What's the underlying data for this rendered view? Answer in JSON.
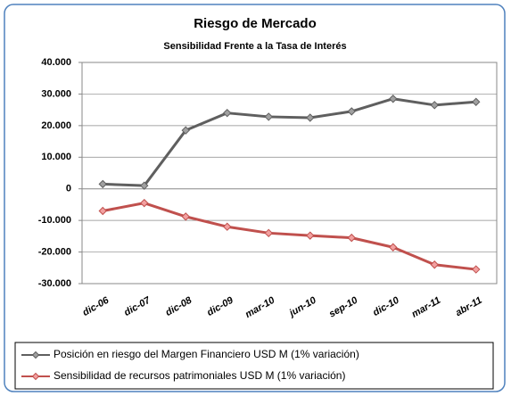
{
  "chart_data": {
    "type": "line",
    "title": "Riesgo de Mercado",
    "subtitle": "Sensibilidad Frente a la Tasa de Interés",
    "categories": [
      "dic-06",
      "dic-07",
      "dic-08",
      "dic-09",
      "mar-10",
      "jun-10",
      "sep-10",
      "dic-10",
      "mar-11",
      "abr-11"
    ],
    "series": [
      {
        "name": "Posición en riesgo del Margen Financiero  USD M (1% variación)",
        "color": "#5f5f5f",
        "values": [
          1500,
          1000,
          18500,
          24000,
          22800,
          22500,
          24500,
          28500,
          26500,
          27500
        ]
      },
      {
        "name": "Sensibilidad de recursos patrimoniales  USD M (1% variación)",
        "color": "#c0504d",
        "values": [
          -7000,
          -4500,
          -8800,
          -12000,
          -14000,
          -14800,
          -15500,
          -18500,
          -24000,
          -25500
        ]
      }
    ],
    "ylim": [
      -30000,
      40000
    ],
    "yticks": [
      {
        "value": -30000,
        "label": "-30.000"
      },
      {
        "value": -20000,
        "label": "-20.000"
      },
      {
        "value": -10000,
        "label": "-10.000"
      },
      0,
      {
        "value": 10000,
        "label": "10.000"
      },
      {
        "value": 20000,
        "label": "20.000"
      },
      {
        "value": 30000,
        "label": "30.000"
      },
      {
        "value": 40000,
        "label": "40.000"
      }
    ],
    "grid": true
  }
}
